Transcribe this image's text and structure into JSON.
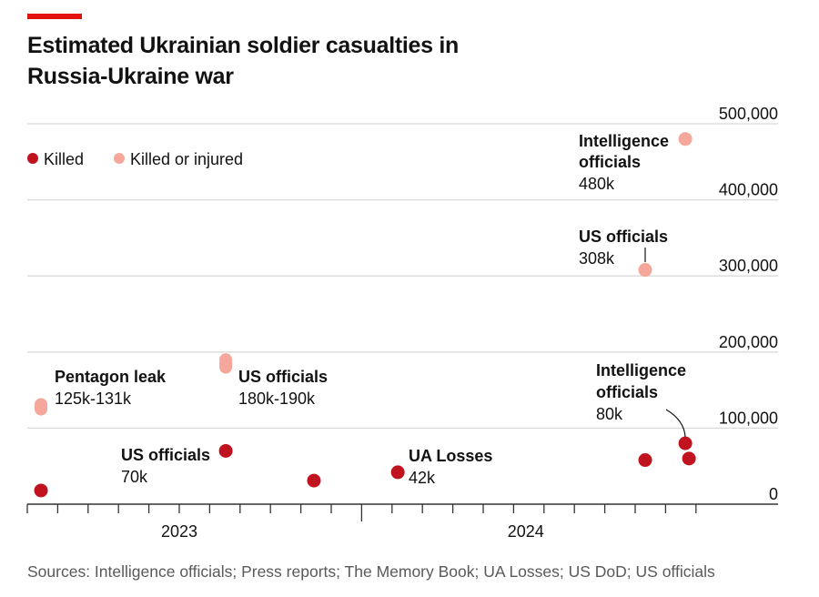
{
  "title": "Estimated Ukrainian soldier casualties in Russia-Ukraine war",
  "source": "Sources: Intelligence officials; Press reports; The Memory Book; UA Losses; US DoD; US officials",
  "colors": {
    "accent": "#e3120b",
    "killed": "#c1121f",
    "killed_or_injured": "#f4a79a",
    "grid": "#d9d9d9"
  },
  "chart_data": {
    "type": "scatter",
    "title": "Estimated Ukrainian soldier casualties in Russia-Ukraine war",
    "xlabel": "",
    "ylabel": "",
    "x_units": "months since Jan 2023 (1 = Jan 2023)",
    "xlim": [
      1,
      25.8
    ],
    "ylim": [
      0,
      500000
    ],
    "yticks": [
      0,
      100000,
      200000,
      300000,
      400000,
      500000
    ],
    "ytick_labels": [
      "0",
      "100,000",
      "200,000",
      "300,000",
      "400,000",
      "500,000"
    ],
    "xticks": [
      1,
      2,
      3,
      4,
      5,
      6,
      7,
      8,
      9,
      10,
      11,
      12,
      13,
      14,
      15,
      16,
      17,
      18,
      19,
      20,
      21,
      22,
      23
    ],
    "major_xtick": 12,
    "xtick_labels": [
      {
        "x": 6,
        "label": "2023"
      },
      {
        "x": 17.4,
        "label": "2024"
      }
    ],
    "grid": true,
    "legend": {
      "placement": "top-left",
      "entries": [
        {
          "name": "Killed",
          "color": "#c1121f"
        },
        {
          "name": "Killed or injured",
          "color": "#f4a79a"
        }
      ]
    },
    "series": [
      {
        "name": "Killed",
        "points": [
          {
            "x": 1.45,
            "y": 18000
          },
          {
            "x": 7.53,
            "y": 70000,
            "label": "US officials",
            "value_label": "70k"
          },
          {
            "x": 10.43,
            "y": 31000
          },
          {
            "x": 13.19,
            "y": 42000,
            "label": "UA Losses",
            "value_label": "42k"
          },
          {
            "x": 21.33,
            "y": 58000
          },
          {
            "x": 22.65,
            "y": 80000,
            "label": "Intelligence officials",
            "value_label": "80k"
          },
          {
            "x": 22.77,
            "y": 60000
          }
        ]
      },
      {
        "name": "Killed or injured",
        "points": [
          {
            "x": 1.45,
            "y": 125000,
            "y2": 131000,
            "label": "Pentagon leak",
            "value_label": "125k-131k"
          },
          {
            "x": 7.53,
            "y": 180000,
            "y2": 190000,
            "label": "US officials",
            "value_label": "180k-190k"
          },
          {
            "x": 21.33,
            "y": 308000,
            "label": "US officials",
            "value_label": "308k"
          },
          {
            "x": 22.65,
            "y": 480000,
            "label": "Intelligence officials",
            "value_label": "480k"
          }
        ]
      }
    ]
  }
}
